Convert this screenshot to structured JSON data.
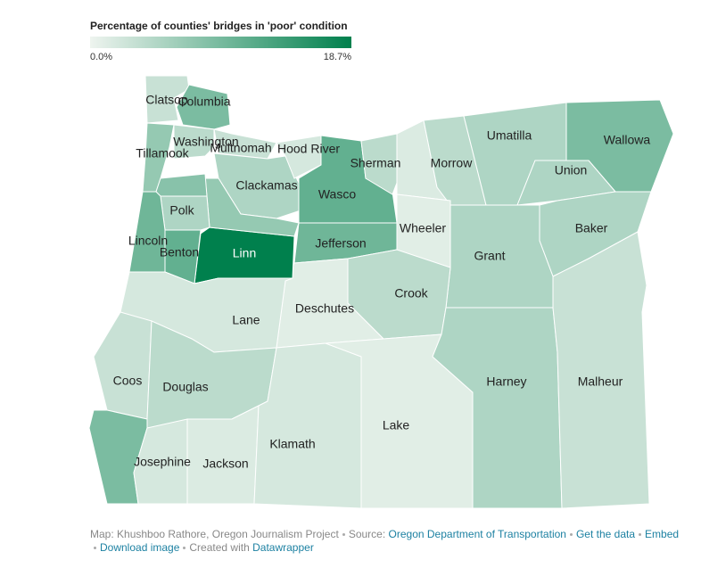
{
  "chart_data": {
    "type": "choropleth",
    "title": "Percentage of counties' bridges in 'poor' condition",
    "scale": [
      {
        "value": 0,
        "label": "0.0%"
      },
      {
        "value": 18.7,
        "label": "18.7%"
      }
    ],
    "colors": [
      "#eef4ef",
      "#00804d"
    ],
    "counties": [
      {
        "name": "Clatsop",
        "value": 3
      },
      {
        "name": "Columbia",
        "value": 9
      },
      {
        "name": "Tillamook",
        "value": 7
      },
      {
        "name": "Washington",
        "value": 4
      },
      {
        "name": "Multnomah",
        "value": 3
      },
      {
        "name": "Clackamas",
        "value": 5
      },
      {
        "name": "Hood River",
        "value": 2
      },
      {
        "name": "Wasco",
        "value": 11
      },
      {
        "name": "Sherman",
        "value": 4
      },
      {
        "name": null,
        "value": 1.5
      },
      {
        "name": "Morrow",
        "value": 4
      },
      {
        "name": "Umatilla",
        "value": 5
      },
      {
        "name": "Wallowa",
        "value": 9
      },
      {
        "name": "Union",
        "value": 5
      },
      {
        "name": "Baker",
        "value": 5
      },
      {
        "name": "Grant",
        "value": 5
      },
      {
        "name": "Wheeler",
        "value": 1
      },
      {
        "name": "Jefferson",
        "value": 10
      },
      {
        "name": "Crook",
        "value": 4
      },
      {
        "name": "Deschutes",
        "value": 1
      },
      {
        "name": "Linn",
        "value": 18.7
      },
      {
        "name": null,
        "value": 7
      },
      {
        "name": "Polk",
        "value": 5
      },
      {
        "name": null,
        "value": 8
      },
      {
        "name": "Lincoln",
        "value": 10
      },
      {
        "name": "Benton",
        "value": 11
      },
      {
        "name": "Lane",
        "value": 2
      },
      {
        "name": "Coos",
        "value": 3
      },
      {
        "name": "Douglas",
        "value": 4
      },
      {
        "name": null,
        "value": 9
      },
      {
        "name": "Josephine",
        "value": 2
      },
      {
        "name": "Jackson",
        "value": 1.5
      },
      {
        "name": "Klamath",
        "value": 2
      },
      {
        "name": "Lake",
        "value": 1
      },
      {
        "name": "Harney",
        "value": 5
      },
      {
        "name": "Malheur",
        "value": 3
      }
    ]
  },
  "footer": {
    "credit": "Map: Khushboo Rathore, Oregon Journalism Project",
    "source_label": "Source:",
    "source": "Oregon Department of Transportation",
    "get_data": "Get the data",
    "embed": "Embed",
    "download": "Download image",
    "created": "Created with",
    "tool": "Datawrapper"
  }
}
